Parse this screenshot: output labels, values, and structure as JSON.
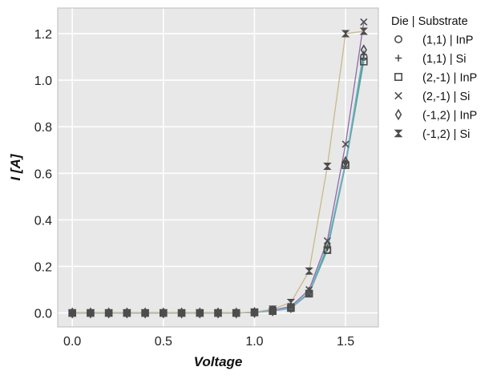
{
  "chart_data": {
    "type": "line",
    "title": "",
    "xlabel": "Voltage",
    "ylabel": "I [A]",
    "xlim": [
      -0.08,
      1.68
    ],
    "ylim": [
      -0.06,
      1.31
    ],
    "grid": true,
    "legend_position": "outside-right",
    "legend_title": "Die | Substrate",
    "x_ticks": [
      0.0,
      0.5,
      1.0,
      1.5
    ],
    "x_tick_labels": [
      "0.0",
      "0.5",
      "1.0",
      "1.5"
    ],
    "y_ticks": [
      0.0,
      0.2,
      0.4,
      0.6,
      0.8,
      1.0,
      1.2
    ],
    "y_tick_labels": [
      "0.0",
      "0.2",
      "0.4",
      "0.6",
      "0.8",
      "1.0",
      "1.2"
    ],
    "x": [
      0.0,
      0.1,
      0.2,
      0.3,
      0.4,
      0.5,
      0.6,
      0.7,
      0.8,
      0.9,
      1.0,
      1.1,
      1.2,
      1.3,
      1.4,
      1.5,
      1.6
    ],
    "series": [
      {
        "name": "(1,1) | InP",
        "marker": "circle",
        "color": "#6baed6",
        "values": [
          0,
          0,
          0,
          0,
          0,
          0,
          0,
          0,
          0,
          0,
          0.002,
          0.008,
          0.02,
          0.085,
          0.27,
          0.64,
          1.1
        ]
      },
      {
        "name": "(1,1) | Si",
        "marker": "plus",
        "color": "#4a9b7f",
        "values": [
          0,
          0,
          0,
          0,
          0,
          0,
          0,
          0,
          0,
          0,
          0.002,
          0.009,
          0.022,
          0.088,
          0.28,
          0.645,
          1.11
        ]
      },
      {
        "name": "(2,-1) | InP",
        "marker": "square",
        "color": "#5aa9a3",
        "values": [
          0,
          0,
          0,
          0,
          0,
          0,
          0,
          0,
          0,
          0,
          0.002,
          0.008,
          0.021,
          0.083,
          0.27,
          0.635,
          1.08
        ]
      },
      {
        "name": "(2,-1) | Si",
        "marker": "x",
        "color": "#8e6aa8",
        "values": [
          0,
          0,
          0,
          0,
          0,
          0,
          0,
          0,
          0,
          0,
          0.003,
          0.012,
          0.028,
          0.1,
          0.31,
          0.725,
          1.25
        ]
      },
      {
        "name": "(-1,2) | InP",
        "marker": "diamond",
        "color": "#7fb2c9",
        "values": [
          0,
          0,
          0,
          0,
          0,
          0,
          0,
          0,
          0,
          0,
          0.002,
          0.009,
          0.023,
          0.09,
          0.29,
          0.65,
          1.13
        ]
      },
      {
        "name": "(-1,2) | Si",
        "marker": "hourglass",
        "color": "#c9b88a",
        "values": [
          0,
          0,
          0,
          0,
          0,
          0,
          0,
          0,
          0,
          0,
          0.004,
          0.016,
          0.045,
          0.18,
          0.63,
          1.2,
          1.21
        ]
      }
    ],
    "colors": {
      "plot_background": "#e8e8e8",
      "grid": "#ffffff",
      "marker": "#4d4d4d",
      "frame": "#bcbcbc"
    }
  }
}
